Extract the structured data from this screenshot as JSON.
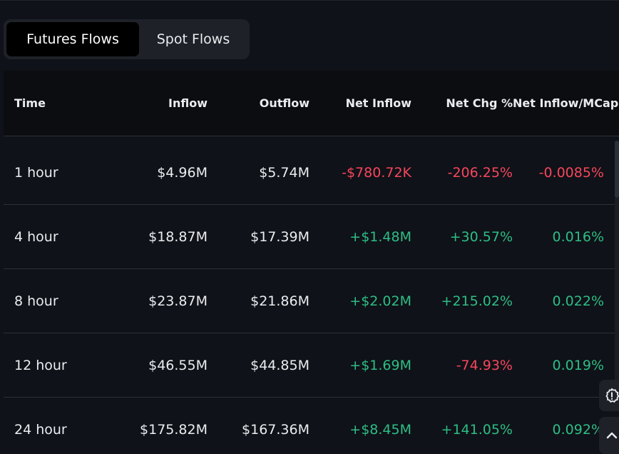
{
  "tabs": {
    "futures_label": "Futures Flows",
    "spot_label": "Spot Flows"
  },
  "table": {
    "headers": {
      "time": "Time",
      "inflow": "Inflow",
      "outflow": "Outflow",
      "net_inflow": "Net Inflow",
      "net_chg": "Net Chg %",
      "net_mcap": "Net Inflow/MCap"
    },
    "rows": [
      {
        "time": "1 hour",
        "inflow": "$4.96M",
        "outflow": "$5.74M",
        "net_inflow": "-$780.72K",
        "net_chg": "-206.25%",
        "net_mcap": "-0.0085%"
      },
      {
        "time": "4 hour",
        "inflow": "$18.87M",
        "outflow": "$17.39M",
        "net_inflow": "+$1.48M",
        "net_chg": "+30.57%",
        "net_mcap": "0.016%"
      },
      {
        "time": "8 hour",
        "inflow": "$23.87M",
        "outflow": "$21.86M",
        "net_inflow": "+$2.02M",
        "net_chg": "+215.02%",
        "net_mcap": "0.022%"
      },
      {
        "time": "12 hour",
        "inflow": "$46.55M",
        "outflow": "$44.85M",
        "net_inflow": "+$1.69M",
        "net_chg": "-74.93%",
        "net_mcap": "0.019%"
      },
      {
        "time": "24 hour",
        "inflow": "$175.82M",
        "outflow": "$167.36M",
        "net_inflow": "+$8.45M",
        "net_chg": "+141.05%",
        "net_mcap": "0.092%"
      }
    ]
  },
  "colors": {
    "background": "#0f1218",
    "positive": "#2ebd85",
    "negative": "#f6465d",
    "text": "#eaecef"
  },
  "icons": {
    "float_1": "feedback-alert-icon",
    "float_2": "chevron-up-icon"
  }
}
